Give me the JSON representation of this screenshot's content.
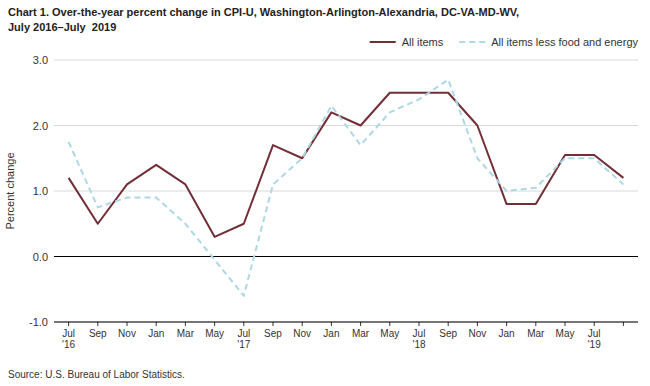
{
  "chart_data": {
    "type": "line",
    "title": "Chart 1. Over-the-year percent change in CPI-U, Washington-Arlington-Alexandria, DC-VA-MD-WV,",
    "subtitle": "July 2016–July  2019",
    "y_label": "Percent change",
    "annotations": [
      "Source: U.S. Bureau of Labor Statistics."
    ],
    "categories": [
      "Jul\n'16",
      "Sep",
      "Nov",
      "Jan",
      "Mar",
      "May",
      "Jul\n'17",
      "Sep",
      "Nov",
      "Jan",
      "Mar",
      "May",
      "Jul\n'18",
      "Sep",
      "Nov",
      "Jan",
      "Mar",
      "May",
      "Jul\n'19",
      null
    ],
    "series": [
      {
        "name": "All items",
        "color": "#722F37",
        "line_style": "solid",
        "values": [
          1.2,
          0.5,
          1.1,
          1.4,
          1.1,
          0.3,
          0.5,
          1.7,
          1.5,
          2.2,
          2.0,
          2.5,
          2.5,
          2.5,
          2.0,
          0.8,
          0.8,
          1.55,
          1.55,
          1.2
        ]
      },
      {
        "name": "All items less food and energy",
        "color": "#add8e6",
        "line_style": "dashed",
        "values": [
          1.75,
          0.75,
          0.9,
          0.9,
          0.5,
          -0.05,
          -0.6,
          1.1,
          1.5,
          2.3,
          1.7,
          2.2,
          2.4,
          2.7,
          1.5,
          1.0,
          1.05,
          1.5,
          1.5,
          1.1
        ]
      }
    ],
    "ylim": [
      -1.0,
      3.0
    ],
    "yticks": [
      {
        "value": -1.0,
        "label": "-1.0"
      },
      {
        "value": 0.0,
        "label": "0.0"
      },
      {
        "value": 1.0,
        "label": "1.0"
      },
      {
        "value": 2.0,
        "label": "2.0"
      },
      {
        "value": 3.0,
        "label": "3.0"
      }
    ],
    "grid": true,
    "legend": "upper right"
  }
}
